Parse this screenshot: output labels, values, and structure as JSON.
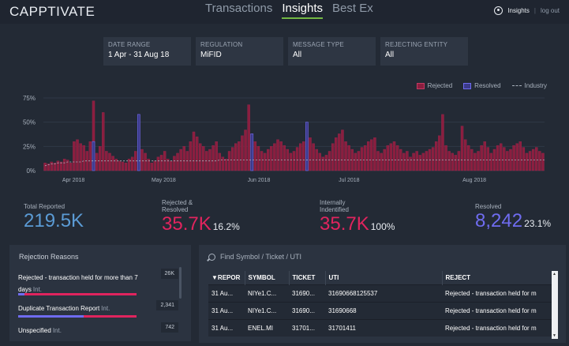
{
  "app": {
    "logo": "CAPPTIVATE"
  },
  "nav": {
    "tabs": [
      "Transactions",
      "Insights",
      "Best Ex"
    ],
    "active": "Insights"
  },
  "user": {
    "name": "Insights",
    "separator": "|",
    "logout": "log out"
  },
  "filters": [
    {
      "label": "DATE RANGE",
      "value": "1 Apr - 31 Aug 18"
    },
    {
      "label": "REGULATION",
      "value": "MiFID"
    },
    {
      "label": "MESSAGE TYPE",
      "value": "All"
    },
    {
      "label": "REJECTING ENTITY",
      "value": "All"
    }
  ],
  "colors": {
    "rejected": "#8b1e3f",
    "resolved": "#3b3a8a",
    "industry": "#aab2bd",
    "accent_green": "#74b843",
    "pink": "#e0245e",
    "blue": "#5b9bd5",
    "purple": "#6f6cf0"
  },
  "chart_data": {
    "type": "bar",
    "y_ticks": [
      "75%",
      "50%",
      "25%",
      "0%"
    ],
    "x_ticks": [
      "Apr 2018",
      "May 2018",
      "Jun 2018",
      "Jul 2018",
      "Aug 2018"
    ],
    "ylim": [
      0,
      75
    ],
    "legend": [
      "Rejected",
      "Resolved",
      "Industry"
    ],
    "rejected": [
      8,
      7,
      9,
      8,
      10,
      9,
      12,
      11,
      8,
      30,
      32,
      28,
      26,
      20,
      30,
      72,
      18,
      25,
      60,
      20,
      18,
      15,
      12,
      10,
      9,
      8,
      12,
      14,
      20,
      58,
      22,
      18,
      12,
      8,
      10,
      14,
      16,
      20,
      12,
      10,
      15,
      18,
      22,
      25,
      20,
      30,
      40,
      35,
      28,
      25,
      20,
      22,
      26,
      30,
      18,
      14,
      12,
      20,
      24,
      28,
      30,
      36,
      42,
      68,
      38,
      30,
      25,
      20,
      18,
      22,
      25,
      28,
      32,
      30,
      26,
      22,
      18,
      20,
      24,
      28,
      30,
      46,
      34,
      28,
      22,
      18,
      14,
      16,
      20,
      28,
      34,
      38,
      42,
      30,
      26,
      22,
      18,
      20,
      24,
      26,
      30,
      32,
      34,
      20,
      18,
      22,
      26,
      28,
      30,
      26,
      22,
      18,
      20,
      14,
      18,
      20,
      16,
      18,
      20,
      22,
      24,
      30,
      36,
      58,
      26,
      20,
      18,
      16,
      20,
      46,
      32,
      26,
      22,
      18,
      20,
      26,
      30,
      24,
      18,
      22,
      26,
      28,
      24,
      20,
      22,
      26,
      28,
      30,
      24,
      18,
      20,
      22,
      24,
      20,
      18
    ],
    "resolved": [
      0,
      0,
      0,
      0,
      0,
      0,
      0,
      0,
      0,
      0,
      0,
      0,
      0,
      0,
      0,
      30,
      0,
      0,
      0,
      0,
      0,
      0,
      0,
      0,
      0,
      0,
      0,
      0,
      0,
      58,
      0,
      0,
      0,
      0,
      0,
      0,
      0,
      0,
      0,
      0,
      0,
      0,
      0,
      0,
      0,
      0,
      0,
      0,
      0,
      0,
      0,
      0,
      0,
      0,
      0,
      0,
      0,
      0,
      0,
      0,
      0,
      0,
      0,
      0,
      38,
      0,
      0,
      0,
      0,
      0,
      0,
      0,
      0,
      0,
      0,
      0,
      0,
      0,
      0,
      0,
      0,
      50,
      0,
      0,
      0,
      0,
      0,
      0,
      0,
      0,
      0,
      0,
      0,
      0,
      0,
      0,
      0,
      0,
      0,
      0,
      0,
      0,
      0,
      0,
      0,
      0,
      0,
      0,
      0,
      0,
      0,
      0,
      0,
      0,
      0,
      0,
      0,
      0,
      0,
      0,
      0,
      0,
      0,
      0,
      0,
      0,
      0,
      0,
      0,
      0,
      0,
      0,
      0,
      0,
      0,
      0,
      0,
      0,
      0,
      0,
      0,
      0,
      0,
      0,
      0,
      0,
      0,
      0,
      0,
      0,
      0,
      0,
      0,
      0,
      0,
      0
    ],
    "industry": [
      5,
      6,
      7,
      7,
      8,
      8,
      8,
      9,
      9,
      9,
      9,
      9,
      10,
      10,
      10,
      10,
      10,
      10,
      10,
      10,
      10,
      10,
      10,
      10,
      10,
      10,
      10,
      10,
      10,
      10,
      10,
      10,
      10,
      10,
      10,
      10,
      10,
      10,
      10,
      10,
      10,
      10,
      10,
      10,
      10,
      10,
      10,
      10,
      10,
      10,
      10,
      10,
      10,
      10,
      11,
      11,
      11,
      11,
      11,
      11,
      11,
      11,
      11,
      11,
      11,
      11,
      11,
      11,
      11,
      11,
      11,
      11,
      11,
      11,
      11,
      11,
      11,
      11,
      11,
      11,
      11,
      11,
      11,
      11,
      11,
      11,
      11,
      11,
      11,
      11,
      11,
      11,
      11,
      11,
      11,
      11,
      11,
      11,
      11,
      11,
      11,
      11,
      11,
      11,
      11,
      11,
      11,
      11,
      11,
      11,
      11,
      11,
      11,
      11,
      11,
      11,
      11,
      11,
      11,
      11,
      11,
      11,
      11,
      11,
      11,
      11,
      11,
      11,
      11,
      11,
      11,
      11,
      11,
      11,
      11,
      11,
      11,
      11,
      11,
      11,
      11,
      11,
      11,
      11,
      11,
      11,
      11,
      11,
      11,
      11,
      11,
      11,
      11,
      11,
      11,
      11
    ]
  },
  "stats": [
    {
      "label": "Total Reported",
      "value": "219.5K",
      "pct": ""
    },
    {
      "label": "Rejected & Resolved",
      "value": "35.7K",
      "pct": "16.2%"
    },
    {
      "label": "Internally Indentified",
      "value": "35.7K",
      "pct": "100%"
    },
    {
      "label": "Resolved",
      "value": "8,242",
      "pct": "23.1%"
    }
  ],
  "reasons": {
    "title": "Rejection Reasons",
    "items": [
      {
        "label": "Rejected - transaction held for more than 7 days",
        "tag": "Int.",
        "count": "26K",
        "rejected": 1.0,
        "resolved": 0.05
      },
      {
        "label": "Duplicate Transaction Report",
        "tag": "Int.",
        "count": "2,341",
        "rejected": 0.45,
        "resolved": 0.55
      },
      {
        "label": "Unspecified",
        "tag": "Int.",
        "count": "742",
        "rejected": 0.2,
        "resolved": 0.0
      }
    ]
  },
  "table": {
    "search_placeholder": "Find Symbol / Ticket / UTI",
    "columns": [
      "▼REPOR",
      "SYMBOL",
      "TICKET",
      "UTI",
      "REJECT"
    ],
    "rows": [
      [
        "31 Au...",
        "NIYe1.C...",
        "31690...",
        "31690668125537",
        "Rejected - transaction held for m"
      ],
      [
        "31 Au...",
        "NIYe1.C...",
        "31690...",
        "31690668",
        "Rejected - transaction held for m"
      ],
      [
        "31 Au...",
        "ENEL.MI",
        "31701...",
        "31701411",
        "Rejected - transaction held for m"
      ]
    ]
  }
}
